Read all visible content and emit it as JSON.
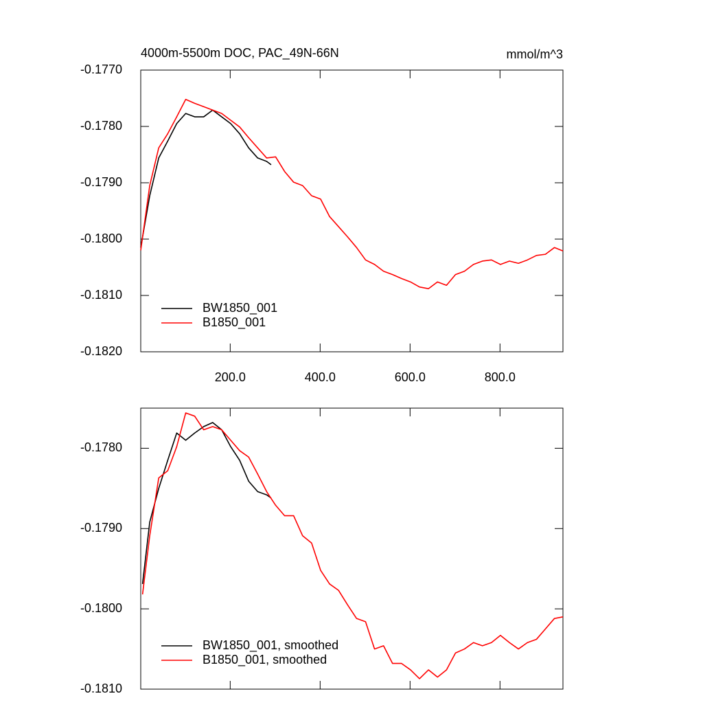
{
  "chart_data": [
    {
      "type": "line",
      "title": "4000m-5500m DOC, PAC_49N-66N",
      "units_label": "mmol/m^3",
      "xlim": [
        1,
        940
      ],
      "xticks": [
        {
          "value": 200,
          "label": "200.0"
        },
        {
          "value": 400,
          "label": "400.0"
        },
        {
          "value": 600,
          "label": "600.0"
        },
        {
          "value": 800,
          "label": "800.0"
        }
      ],
      "ylim": [
        -0.182,
        -0.177
      ],
      "yticks": [
        {
          "value": -0.177,
          "label": "-0.1770"
        },
        {
          "value": -0.178,
          "label": "-0.1780"
        },
        {
          "value": -0.179,
          "label": "-0.1790"
        },
        {
          "value": -0.18,
          "label": "-0.1800"
        },
        {
          "value": -0.181,
          "label": "-0.1810"
        },
        {
          "value": -0.182,
          "label": "-0.1820"
        }
      ],
      "legend": "lower left",
      "series": [
        {
          "name": "BW1850_001",
          "color": "#000000",
          "x": [
            1,
            21,
            41,
            61,
            81,
            101,
            121,
            141,
            161,
            181,
            201,
            221,
            241,
            261,
            281,
            291
          ],
          "values": [
            -0.18015,
            -0.17923,
            -0.17856,
            -0.17826,
            -0.17795,
            -0.17777,
            -0.17783,
            -0.17783,
            -0.17771,
            -0.17783,
            -0.17795,
            -0.17813,
            -0.17838,
            -0.17856,
            -0.17862,
            -0.17868
          ]
        },
        {
          "name": "B1850_001",
          "color": "#ff0000",
          "x": [
            1,
            21,
            41,
            61,
            81,
            101,
            121,
            141,
            161,
            181,
            201,
            221,
            241,
            261,
            281,
            301,
            321,
            341,
            361,
            381,
            401,
            421,
            441,
            461,
            481,
            501,
            521,
            541,
            561,
            581,
            601,
            621,
            641,
            661,
            681,
            701,
            721,
            741,
            761,
            781,
            801,
            821,
            841,
            861,
            881,
            901,
            921,
            940
          ],
          "values": [
            -0.1802,
            -0.17905,
            -0.17838,
            -0.17813,
            -0.17783,
            -0.17752,
            -0.17759,
            -0.17765,
            -0.17771,
            -0.17777,
            -0.17789,
            -0.17801,
            -0.1782,
            -0.17838,
            -0.17856,
            -0.17854,
            -0.1788,
            -0.17899,
            -0.17905,
            -0.17923,
            -0.17929,
            -0.1796,
            -0.17978,
            -0.17996,
            -0.18015,
            -0.18037,
            -0.18045,
            -0.18057,
            -0.18063,
            -0.1807,
            -0.18076,
            -0.18085,
            -0.18088,
            -0.18076,
            -0.18082,
            -0.18063,
            -0.18057,
            -0.18045,
            -0.18039,
            -0.18037,
            -0.18045,
            -0.18039,
            -0.18043,
            -0.18037,
            -0.18029,
            -0.18027,
            -0.18015,
            -0.18021
          ]
        }
      ]
    },
    {
      "type": "line",
      "xlim": [
        1,
        940
      ],
      "xticks": [
        200,
        400,
        600,
        800
      ],
      "ylim": [
        -0.181,
        -0.1775
      ],
      "yticks": [
        {
          "value": -0.178,
          "label": "-0.1780"
        },
        {
          "value": -0.179,
          "label": "-0.1790"
        },
        {
          "value": -0.18,
          "label": "-0.1800"
        },
        {
          "value": -0.181,
          "label": "-0.1810"
        }
      ],
      "legend": "lower left",
      "series": [
        {
          "name": "BW1850_001, smoothed",
          "color": "#000000",
          "x": [
            5,
            21,
            41,
            61,
            81,
            101,
            121,
            141,
            161,
            181,
            201,
            221,
            241,
            261,
            281,
            291
          ],
          "values": [
            -0.17969,
            -0.17892,
            -0.1785,
            -0.17815,
            -0.17781,
            -0.1779,
            -0.17781,
            -0.17773,
            -0.17768,
            -0.17777,
            -0.17798,
            -0.17815,
            -0.17841,
            -0.17854,
            -0.17858,
            -0.17862
          ]
        },
        {
          "name": "B1850_001, smoothed",
          "color": "#ff0000",
          "x": [
            5,
            21,
            41,
            61,
            81,
            101,
            121,
            141,
            161,
            181,
            201,
            221,
            241,
            261,
            281,
            301,
            321,
            341,
            361,
            381,
            401,
            421,
            441,
            461,
            481,
            501,
            521,
            541,
            561,
            581,
            601,
            621,
            641,
            661,
            681,
            701,
            721,
            741,
            761,
            781,
            801,
            821,
            841,
            861,
            881,
            901,
            921,
            940
          ],
          "values": [
            -0.17982,
            -0.17909,
            -0.17837,
            -0.17828,
            -0.17798,
            -0.17756,
            -0.1776,
            -0.17777,
            -0.17773,
            -0.17777,
            -0.1779,
            -0.17803,
            -0.17811,
            -0.17832,
            -0.17854,
            -0.17871,
            -0.17884,
            -0.17884,
            -0.17909,
            -0.17918,
            -0.17952,
            -0.17969,
            -0.17977,
            -0.17995,
            -0.18012,
            -0.18016,
            -0.1805,
            -0.18046,
            -0.18068,
            -0.18068,
            -0.18076,
            -0.18087,
            -0.18076,
            -0.18085,
            -0.18076,
            -0.18055,
            -0.1805,
            -0.18042,
            -0.18046,
            -0.18042,
            -0.18033,
            -0.18042,
            -0.1805,
            -0.18042,
            -0.18038,
            -0.18025,
            -0.18012,
            -0.1801
          ]
        }
      ]
    }
  ]
}
